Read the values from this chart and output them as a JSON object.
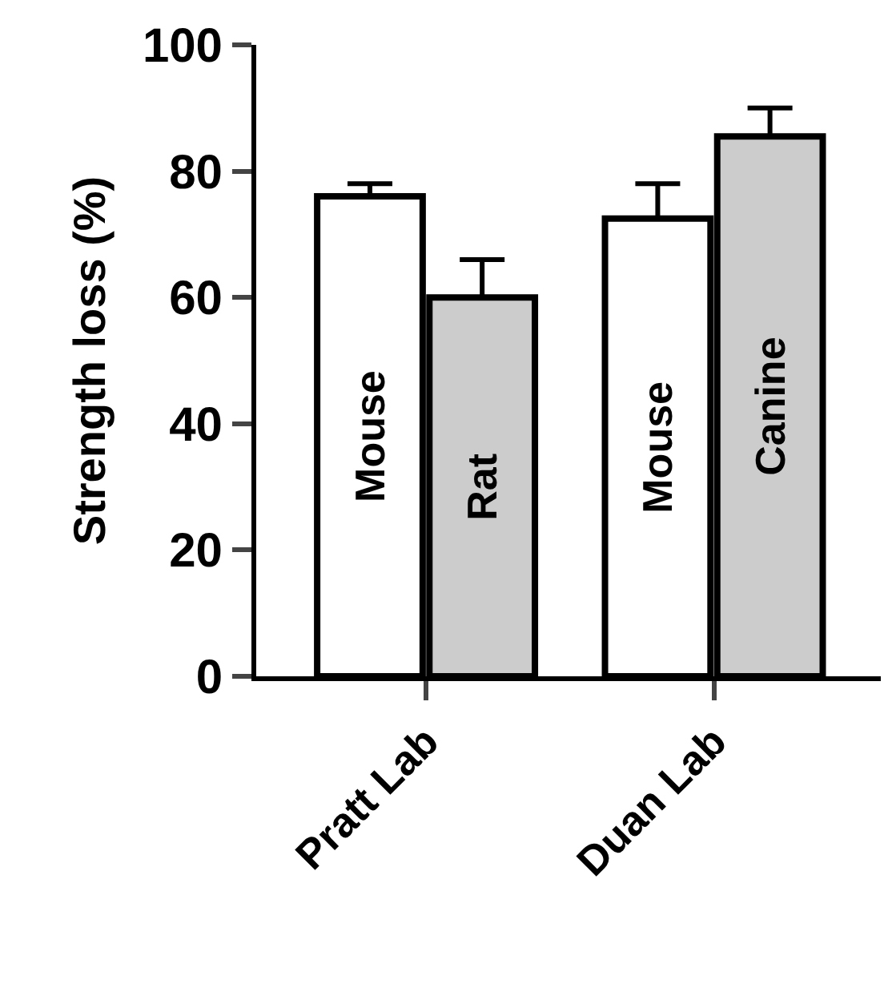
{
  "chart_data": {
    "type": "bar",
    "ylabel": "Strength loss (%)",
    "categories": [
      "Pratt Lab",
      "Duan Lab"
    ],
    "series": [
      {
        "color": "#ffffff",
        "values": [
          76,
          72.5
        ],
        "errors": [
          [
            76,
            78
          ],
          [
            72.5,
            78
          ]
        ],
        "value_labels": [
          "Mouse",
          "Mouse"
        ]
      },
      {
        "color": "#cccccc",
        "values": [
          60,
          85.5
        ],
        "errors": [
          [
            60,
            66
          ],
          [
            85.5,
            90
          ]
        ],
        "value_labels": [
          "Rat",
          "Canine"
        ]
      }
    ],
    "ylim": [
      0,
      100
    ],
    "yticks": [
      0,
      20,
      40,
      60,
      80,
      100
    ]
  }
}
